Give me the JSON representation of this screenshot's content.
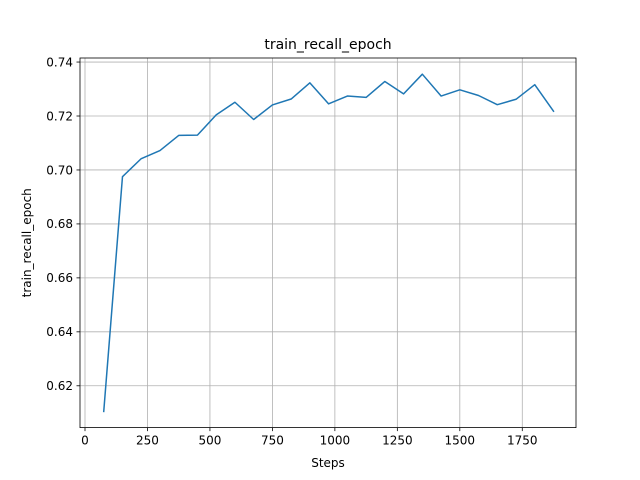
{
  "chart_data": {
    "type": "line",
    "title": "train_recall_epoch",
    "xlabel": "Steps",
    "ylabel": "train_recall_epoch",
    "xlim": [
      -20,
      1965
    ],
    "ylim": [
      0.6045,
      0.7415
    ],
    "xticks": [
      0,
      250,
      500,
      750,
      1000,
      1250,
      1500,
      1750
    ],
    "xtick_labels": [
      "0",
      "250",
      "500",
      "750",
      "1000",
      "1250",
      "1500",
      "1750"
    ],
    "yticks": [
      0.62,
      0.64,
      0.66,
      0.68,
      0.7,
      0.72,
      0.74
    ],
    "ytick_labels": [
      "0.62",
      "0.64",
      "0.66",
      "0.68",
      "0.70",
      "0.72",
      "0.74"
    ],
    "grid": true,
    "series": [
      {
        "color": "#1f77b4",
        "x": [
          75,
          150,
          225,
          300,
          375,
          450,
          525,
          600,
          675,
          750,
          825,
          900,
          975,
          1050,
          1125,
          1200,
          1275,
          1350,
          1425,
          1500,
          1575,
          1650,
          1725,
          1800,
          1875
        ],
        "y": [
          0.6105,
          0.6975,
          0.7042,
          0.7072,
          0.7128,
          0.7129,
          0.7204,
          0.7251,
          0.7187,
          0.7241,
          0.7263,
          0.7323,
          0.7245,
          0.7274,
          0.7269,
          0.7328,
          0.7282,
          0.7355,
          0.7274,
          0.7297,
          0.7276,
          0.7242,
          0.7262,
          0.7316,
          0.7218
        ]
      }
    ]
  }
}
